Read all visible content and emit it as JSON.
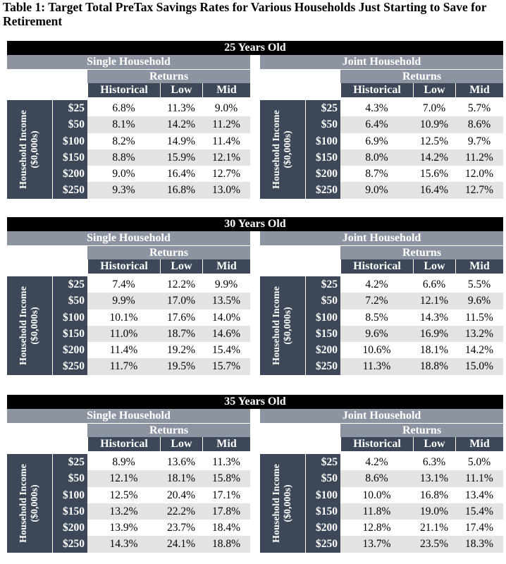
{
  "title": "Table 1: Target Total PreTax Savings Rates for Various Households Just Starting to Save for Retirement",
  "labels": {
    "single": "Single Household",
    "joint": "Joint Household",
    "returns": "Returns",
    "historical": "Historical",
    "low": "Low",
    "mid": "Mid",
    "side_line1": "Household Income",
    "side_line2": "($0,000s)"
  },
  "incomes": [
    "$25",
    "$50",
    "$100",
    "$150",
    "$200",
    "$250"
  ],
  "sections": [
    {
      "age": "25 Years Old",
      "single": [
        [
          "6.8%",
          "11.3%",
          "9.0%"
        ],
        [
          "8.1%",
          "14.2%",
          "11.2%"
        ],
        [
          "8.2%",
          "14.9%",
          "11.4%"
        ],
        [
          "8.8%",
          "15.9%",
          "12.1%"
        ],
        [
          "9.0%",
          "16.4%",
          "12.7%"
        ],
        [
          "9.3%",
          "16.8%",
          "13.0%"
        ]
      ],
      "joint": [
        [
          "4.3%",
          "7.0%",
          "5.7%"
        ],
        [
          "6.4%",
          "10.9%",
          "8.6%"
        ],
        [
          "6.9%",
          "12.5%",
          "9.7%"
        ],
        [
          "8.0%",
          "14.2%",
          "11.2%"
        ],
        [
          "8.7%",
          "15.6%",
          "12.0%"
        ],
        [
          "9.0%",
          "16.4%",
          "12.7%"
        ]
      ]
    },
    {
      "age": "30 Years Old",
      "single": [
        [
          "7.4%",
          "12.2%",
          "9.9%"
        ],
        [
          "9.9%",
          "17.0%",
          "13.5%"
        ],
        [
          "10.1%",
          "17.6%",
          "14.0%"
        ],
        [
          "11.0%",
          "18.7%",
          "14.6%"
        ],
        [
          "11.4%",
          "19.2%",
          "15.4%"
        ],
        [
          "11.7%",
          "19.5%",
          "15.7%"
        ]
      ],
      "joint": [
        [
          "4.2%",
          "6.6%",
          "5.5%"
        ],
        [
          "7.2%",
          "12.1%",
          "9.6%"
        ],
        [
          "8.5%",
          "14.3%",
          "11.5%"
        ],
        [
          "9.6%",
          "16.9%",
          "13.2%"
        ],
        [
          "10.6%",
          "18.1%",
          "14.2%"
        ],
        [
          "11.3%",
          "18.8%",
          "15.0%"
        ]
      ]
    },
    {
      "age": "35 Years Old",
      "single": [
        [
          "8.9%",
          "13.6%",
          "11.3%"
        ],
        [
          "12.1%",
          "18.1%",
          "15.8%"
        ],
        [
          "12.5%",
          "20.4%",
          "17.1%"
        ],
        [
          "13.2%",
          "22.2%",
          "17.8%"
        ],
        [
          "13.9%",
          "23.7%",
          "18.4%"
        ],
        [
          "14.3%",
          "24.1%",
          "18.8%"
        ]
      ],
      "joint": [
        [
          "4.2%",
          "6.3%",
          "5.0%"
        ],
        [
          "8.6%",
          "13.1%",
          "11.1%"
        ],
        [
          "10.0%",
          "16.8%",
          "13.4%"
        ],
        [
          "11.8%",
          "19.0%",
          "15.4%"
        ],
        [
          "12.8%",
          "21.1%",
          "17.4%"
        ],
        [
          "13.7%",
          "23.5%",
          "18.3%"
        ]
      ]
    }
  ]
}
